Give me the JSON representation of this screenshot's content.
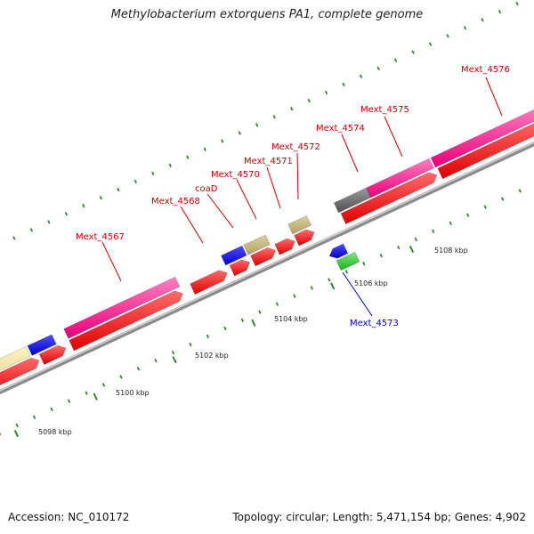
{
  "title": "Methylobacterium extorquens PA1, complete genome",
  "footer": {
    "accession": "Accession: NC_010172",
    "summary": "Topology: circular; Length: 5,471,154 bp; Genes: 4,902"
  },
  "colors": {
    "backbone": "#6a6a6a",
    "backbone_light": "#c8c8c8",
    "tick": "#2a8a2a",
    "forward_label": "#cc0000",
    "reverse_label": "#0000bb",
    "cds": "#ff0000",
    "rRNA_like": "#ff3399",
    "blue": "#0000ee",
    "green": "#22cc22",
    "khaki": "#c8b878",
    "pale": "#eee39a",
    "gray": "#707070"
  },
  "scale": {
    "labels": [
      {
        "text": "5098 kbp",
        "kbp": 5098
      },
      {
        "text": "5100 kbp",
        "kbp": 5100
      },
      {
        "text": "5102 kbp",
        "kbp": 5102
      },
      {
        "text": "5104 kbp",
        "kbp": 5104
      },
      {
        "text": "5106 kbp",
        "kbp": 5106
      },
      {
        "text": "5108 kbp",
        "kbp": 5108
      }
    ]
  },
  "gene_labels": [
    {
      "text": "Mext_4567",
      "strand": "forward"
    },
    {
      "text": "Mext_4568",
      "strand": "forward"
    },
    {
      "text": "coaD",
      "strand": "forward"
    },
    {
      "text": "Mext_4570",
      "strand": "forward"
    },
    {
      "text": "Mext_4571",
      "strand": "forward"
    },
    {
      "text": "Mext_4572",
      "strand": "forward"
    },
    {
      "text": "Mext_4574",
      "strand": "forward"
    },
    {
      "text": "Mext_4575",
      "strand": "forward"
    },
    {
      "text": "Mext_4576",
      "strand": "forward"
    },
    {
      "text": "Mext_4573",
      "strand": "reverse"
    }
  ]
}
